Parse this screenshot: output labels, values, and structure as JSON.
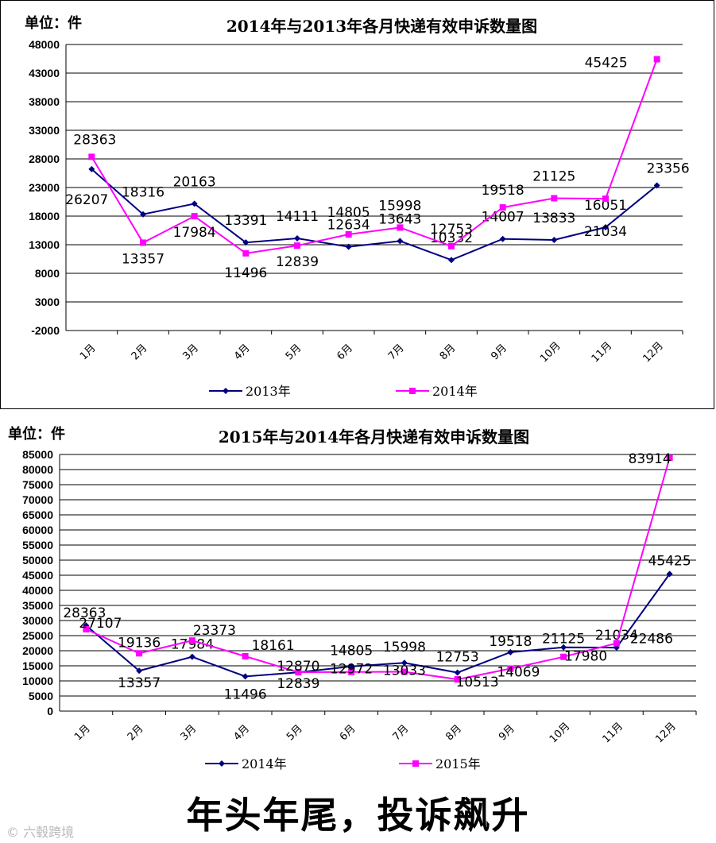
{
  "chart_data": [
    {
      "type": "line",
      "title": "2014年与2013年各月快递有效申诉数量图",
      "unit_label": "单位：件",
      "categories": [
        "1月",
        "2月",
        "3月",
        "4月",
        "5月",
        "6月",
        "7月",
        "8月",
        "9月",
        "10月",
        "11月",
        "12月"
      ],
      "yticks": [
        "48000",
        "43000",
        "38000",
        "33000",
        "28000",
        "23000",
        "18000",
        "13000",
        "8000",
        "3000",
        "-2000"
      ],
      "ylim": [
        -2000,
        48000
      ],
      "series": [
        {
          "name": "2013年",
          "color": "#000080",
          "marker": "diamond",
          "values": [
            26207,
            18316,
            20163,
            13391,
            14111,
            12634,
            13643,
            10332,
            14007,
            13833,
            16051,
            23356
          ]
        },
        {
          "name": "2014年",
          "color": "#ff00ff",
          "marker": "square",
          "values": [
            28363,
            13357,
            17984,
            11496,
            12839,
            14805,
            15998,
            12753,
            19518,
            21125,
            21034,
            45425
          ]
        }
      ]
    },
    {
      "type": "line",
      "title": "2015年与2014年各月快递有效申诉数量图",
      "unit_label": "单位：件",
      "categories": [
        "1月",
        "2月",
        "3月",
        "4月",
        "5月",
        "6月",
        "7月",
        "8月",
        "9月",
        "10月",
        "11月",
        "12月"
      ],
      "yticks": [
        "85000",
        "80000",
        "75000",
        "70000",
        "65000",
        "60000",
        "55000",
        "50000",
        "45000",
        "40000",
        "35000",
        "30000",
        "25000",
        "20000",
        "15000",
        "10000",
        "5000",
        "0"
      ],
      "ylim": [
        0,
        85000
      ],
      "series": [
        {
          "name": "2014年",
          "color": "#000080",
          "marker": "diamond",
          "values": [
            28363,
            13357,
            17984,
            11496,
            12839,
            14805,
            15998,
            12753,
            19518,
            21125,
            21034,
            45425
          ]
        },
        {
          "name": "2015年",
          "color": "#ff00ff",
          "marker": "square",
          "values": [
            27107,
            19136,
            23373,
            18161,
            12870,
            12972,
            13033,
            10513,
            14069,
            17980,
            22486,
            83914
          ]
        }
      ]
    }
  ],
  "caption": "年头年尾，投诉飙升",
  "watermark": "© 六毂跨境"
}
